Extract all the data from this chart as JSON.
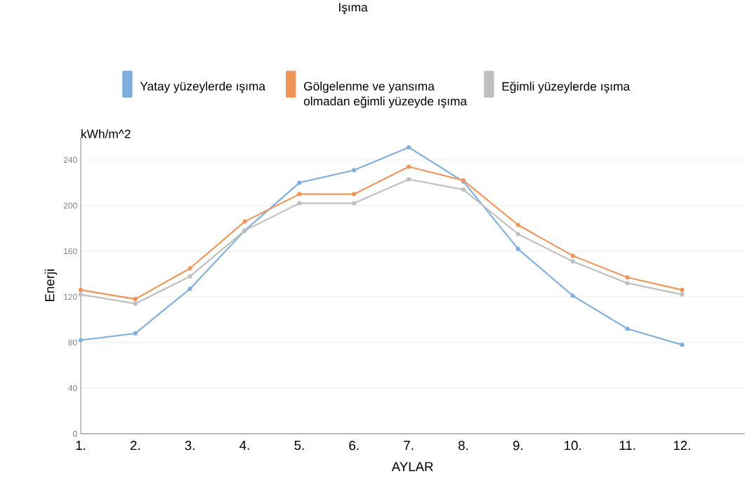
{
  "chart_data": {
    "type": "line",
    "title": "Işıma",
    "xlabel": "AYLAR",
    "ylabel": "Enerji",
    "annotations": [
      "kWh/m^2"
    ],
    "categories": [
      "1.",
      "2.",
      "3.",
      "4.",
      "5.",
      "6.",
      "7.",
      "8.",
      "9.",
      "10.",
      "11.",
      "12."
    ],
    "series": [
      {
        "name": "Yatay yüzeylerde ışıma",
        "color": "#7eaedc",
        "values": [
          82,
          88,
          127,
          178,
          220,
          231,
          251,
          221,
          162,
          121,
          92,
          78
        ]
      },
      {
        "name": "Gölgelenme ve yansıma olmadan eğimli  yüzeyde ışıma",
        "color": "#f0955a",
        "values": [
          126,
          118,
          145,
          186,
          210,
          210,
          234,
          222,
          183,
          156,
          137,
          126
        ]
      },
      {
        "name": "Eğimli yüzeylerde ışıma",
        "color": "#bfbfbf",
        "values": [
          122,
          114,
          138,
          178,
          202,
          202,
          223,
          214,
          175,
          151,
          132,
          122
        ]
      }
    ],
    "ylim": [
      0,
      260
    ],
    "yticks": [
      0,
      40,
      80,
      120,
      160,
      200,
      240
    ],
    "grid": "y",
    "legend": "top",
    "marker": "circle",
    "line_style": "solid"
  }
}
